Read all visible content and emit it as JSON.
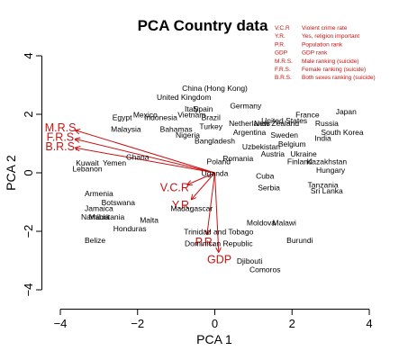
{
  "chart_data": {
    "type": "scatter",
    "title": "PCA Country data",
    "xlabel": "PCA 1",
    "ylabel": "PCA 2",
    "xlim": [
      -4,
      4
    ],
    "ylim": [
      -4,
      4
    ],
    "xticks": [
      "−4",
      "−2",
      "0",
      "2",
      "4"
    ],
    "yticks": [
      "−4",
      "−2",
      "0",
      "2",
      "4"
    ],
    "grid": false,
    "legend_position": "top-right",
    "colors": {
      "points": "#000000",
      "arrows": "#cc1111"
    },
    "legend": [
      {
        "abbr": "V.C.R",
        "desc": "Violent crime rate"
      },
      {
        "abbr": "Y.R.",
        "desc": "Yes, religion important"
      },
      {
        "abbr": "P.R.",
        "desc": "Population rank"
      },
      {
        "abbr": "GDP",
        "desc": "GDP rank"
      },
      {
        "abbr": "M.R.S.",
        "desc": "Male ranking (suicide)"
      },
      {
        "abbr": "F.R.S.",
        "desc": "Female ranking (suicide)"
      },
      {
        "abbr": "B.R.S.",
        "desc": "Both sexes ranking (suicide)"
      }
    ],
    "points": [
      {
        "label": "China (Hong Kong)",
        "x": 0.0,
        "y": 2.8
      },
      {
        "label": "United Kingdom",
        "x": -0.8,
        "y": 2.5
      },
      {
        "label": "Italy",
        "x": -0.6,
        "y": 2.1
      },
      {
        "label": "Spain",
        "x": -0.3,
        "y": 2.1
      },
      {
        "label": "Germany",
        "x": 0.8,
        "y": 2.2
      },
      {
        "label": "France",
        "x": 2.4,
        "y": 1.9
      },
      {
        "label": "Japan",
        "x": 3.4,
        "y": 2.0
      },
      {
        "label": "Mexico",
        "x": -1.8,
        "y": 1.9
      },
      {
        "label": "Vietnam",
        "x": -0.6,
        "y": 1.9
      },
      {
        "label": "Egypt",
        "x": -2.4,
        "y": 1.8
      },
      {
        "label": "Indonesia",
        "x": -1.4,
        "y": 1.8
      },
      {
        "label": "Brazil",
        "x": -0.1,
        "y": 1.8
      },
      {
        "label": "Netherlands",
        "x": 0.9,
        "y": 1.6
      },
      {
        "label": "United States",
        "x": 1.8,
        "y": 1.7
      },
      {
        "label": "Russia",
        "x": 2.9,
        "y": 1.6
      },
      {
        "label": "Malaysia",
        "x": -2.3,
        "y": 1.4
      },
      {
        "label": "Bahamas",
        "x": -1.0,
        "y": 1.4
      },
      {
        "label": "Turkey",
        "x": -0.1,
        "y": 1.5
      },
      {
        "label": "New Zealand",
        "x": 1.6,
        "y": 1.6
      },
      {
        "label": "South Korea",
        "x": 3.3,
        "y": 1.3
      },
      {
        "label": "Nigeria",
        "x": -0.7,
        "y": 1.2
      },
      {
        "label": "Argentina",
        "x": 0.9,
        "y": 1.3
      },
      {
        "label": "Sweden",
        "x": 1.8,
        "y": 1.2
      },
      {
        "label": "India",
        "x": 2.8,
        "y": 1.1
      },
      {
        "label": "Bangladesh",
        "x": 0.0,
        "y": 1.0
      },
      {
        "label": "Belgium",
        "x": 2.0,
        "y": 0.9
      },
      {
        "label": "Uzbekistan",
        "x": 1.2,
        "y": 0.8
      },
      {
        "label": "Ghana",
        "x": -2.0,
        "y": 0.45
      },
      {
        "label": "Austria",
        "x": 1.5,
        "y": 0.55
      },
      {
        "label": "Ukraine",
        "x": 2.3,
        "y": 0.55
      },
      {
        "label": "Romania",
        "x": 0.6,
        "y": 0.4
      },
      {
        "label": "Kuwait",
        "x": -3.3,
        "y": 0.25
      },
      {
        "label": "Yemen",
        "x": -2.6,
        "y": 0.25
      },
      {
        "label": "Poland",
        "x": 0.1,
        "y": 0.3
      },
      {
        "label": "Finland",
        "x": 2.2,
        "y": 0.3
      },
      {
        "label": "Kazakhstan",
        "x": 2.9,
        "y": 0.3
      },
      {
        "label": "Hungary",
        "x": 3.0,
        "y": 0.0
      },
      {
        "label": "Lebanon",
        "x": -3.3,
        "y": 0.05
      },
      {
        "label": "Uganda",
        "x": 0.0,
        "y": -0.1
      },
      {
        "label": "Cuba",
        "x": 1.3,
        "y": -0.2
      },
      {
        "label": "Tanzania",
        "x": 2.8,
        "y": -0.5
      },
      {
        "label": "Sri Lanka",
        "x": 2.9,
        "y": -0.7
      },
      {
        "label": "Serbia",
        "x": 1.4,
        "y": -0.6
      },
      {
        "label": "Jamaica",
        "x": -3.0,
        "y": -1.3
      },
      {
        "label": "Armenia",
        "x": -3.0,
        "y": -0.8
      },
      {
        "label": "Botswana",
        "x": -2.5,
        "y": -1.1
      },
      {
        "label": "Namibia",
        "x": -3.1,
        "y": -1.6
      },
      {
        "label": "Mauritania",
        "x": -2.8,
        "y": -1.6
      },
      {
        "label": "Malta",
        "x": -1.7,
        "y": -1.7
      },
      {
        "label": "Honduras",
        "x": -2.2,
        "y": -2.0
      },
      {
        "label": "Belize",
        "x": -3.1,
        "y": -2.4
      },
      {
        "label": "Madagascar",
        "x": -0.6,
        "y": -1.3
      },
      {
        "label": "Trinidad and Tobago",
        "x": 0.1,
        "y": -2.1
      },
      {
        "label": "Dominican Republic",
        "x": 0.1,
        "y": -2.5
      },
      {
        "label": "Moldova",
        "x": 1.2,
        "y": -1.8
      },
      {
        "label": "Malawi",
        "x": 1.8,
        "y": -1.8
      },
      {
        "label": "Burundi",
        "x": 2.2,
        "y": -2.4
      },
      {
        "label": "Djibouti",
        "x": 0.9,
        "y": -3.1
      },
      {
        "label": "Comoros",
        "x": 1.3,
        "y": -3.4
      }
    ],
    "arrows": [
      {
        "label": "M.R.S.",
        "x": -3.6,
        "y": 1.45
      },
      {
        "label": "F.R.S.",
        "x": -3.6,
        "y": 1.15
      },
      {
        "label": "B.R.S.",
        "x": -3.6,
        "y": 0.85
      },
      {
        "label": "V.C.R",
        "x": -0.7,
        "y": -0.4
      },
      {
        "label": "Y.R.",
        "x": -0.6,
        "y": -0.9
      },
      {
        "label": "P.R.",
        "x": -0.2,
        "y": -2.1
      },
      {
        "label": "GDP",
        "x": 0.1,
        "y": -2.7
      }
    ]
  }
}
